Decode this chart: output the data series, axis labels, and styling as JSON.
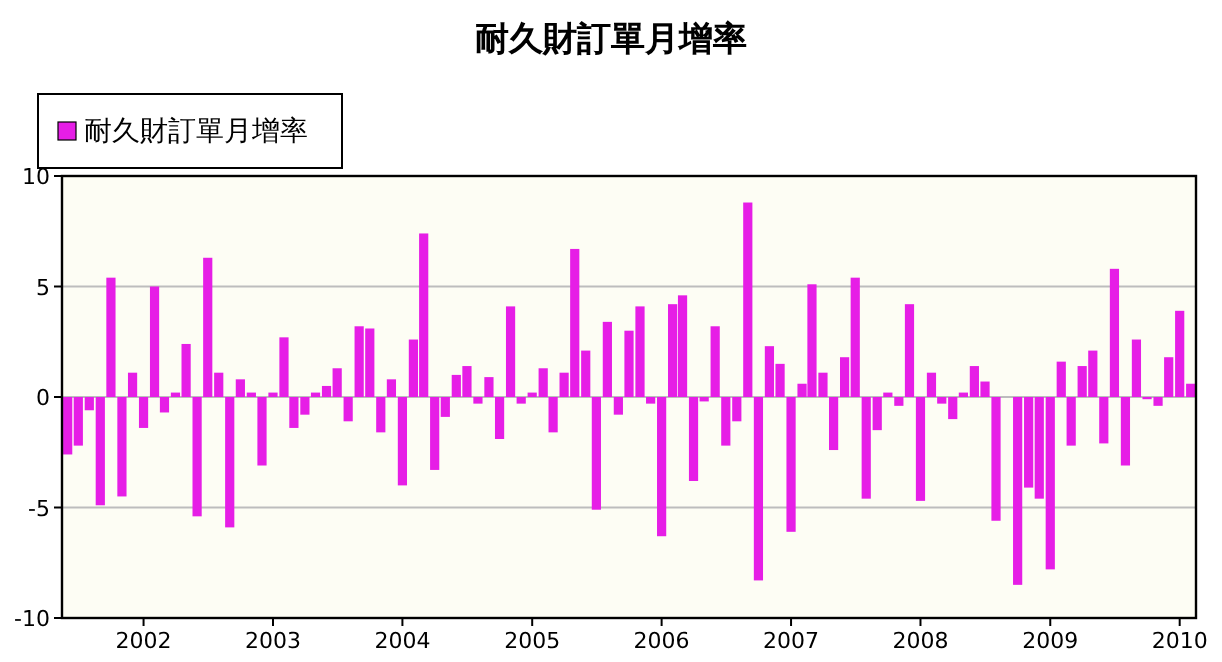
{
  "chart_data": {
    "type": "bar",
    "title": "耐久財訂單月增率",
    "x": [
      "2001-06",
      "2001-07",
      "2001-08",
      "2001-09",
      "2001-10",
      "2001-11",
      "2001-12",
      "2002-01",
      "2002-02",
      "2002-03",
      "2002-04",
      "2002-05",
      "2002-06",
      "2002-07",
      "2002-08",
      "2002-09",
      "2002-10",
      "2002-11",
      "2002-12",
      "2003-01",
      "2003-02",
      "2003-03",
      "2003-04",
      "2003-05",
      "2003-06",
      "2003-07",
      "2003-08",
      "2003-09",
      "2003-10",
      "2003-11",
      "2003-12",
      "2004-01",
      "2004-02",
      "2004-03",
      "2004-04",
      "2004-05",
      "2004-06",
      "2004-07",
      "2004-08",
      "2004-09",
      "2004-10",
      "2004-11",
      "2004-12",
      "2005-01",
      "2005-02",
      "2005-03",
      "2005-04",
      "2005-05",
      "2005-06",
      "2005-07",
      "2005-08",
      "2005-09",
      "2005-10",
      "2005-11",
      "2005-12",
      "2006-01",
      "2006-02",
      "2006-03",
      "2006-04",
      "2006-05",
      "2006-06",
      "2006-07",
      "2006-08",
      "2006-09",
      "2006-10",
      "2006-11",
      "2006-12",
      "2007-01",
      "2007-02",
      "2007-03",
      "2007-04",
      "2007-05",
      "2007-06",
      "2007-07",
      "2007-08",
      "2007-09",
      "2007-10",
      "2007-11",
      "2007-12",
      "2008-01",
      "2008-02",
      "2008-03",
      "2008-04",
      "2008-05",
      "2008-06",
      "2008-07",
      "2008-08",
      "2008-09",
      "2008-10",
      "2008-11",
      "2008-12",
      "2009-01",
      "2009-02",
      "2009-03",
      "2009-04",
      "2009-05",
      "2009-06",
      "2009-07",
      "2009-08",
      "2009-09",
      "2009-10",
      "2009-11",
      "2009-12",
      "2010-01",
      "2010-02"
    ],
    "series": [
      {
        "name": "耐久財訂單月增率",
        "color": "#e61ee6",
        "values": [
          -2.6,
          -2.2,
          -0.6,
          -4.9,
          5.4,
          -4.5,
          1.1,
          -1.4,
          5.0,
          -0.7,
          0.2,
          2.4,
          -5.4,
          6.3,
          1.1,
          -5.9,
          0.8,
          0.2,
          -3.1,
          0.2,
          2.7,
          -1.4,
          -0.8,
          0.2,
          0.5,
          1.3,
          -1.1,
          3.2,
          3.1,
          -1.6,
          0.8,
          -4.0,
          2.6,
          7.4,
          -3.3,
          -0.9,
          1.0,
          1.4,
          -0.3,
          0.9,
          -1.9,
          4.1,
          -0.3,
          0.2,
          1.3,
          -1.6,
          1.1,
          6.7,
          2.1,
          -5.1,
          3.4,
          -0.8,
          3.0,
          4.1,
          -0.3,
          -6.3,
          4.2,
          4.6,
          -3.8,
          -0.2,
          3.2,
          -2.2,
          -1.1,
          8.8,
          -8.3,
          2.3,
          1.5,
          -6.1,
          0.6,
          5.1,
          1.1,
          -2.4,
          1.8,
          5.4,
          -4.6,
          -1.5,
          0.2,
          -0.4,
          4.2,
          -4.7,
          1.1,
          -0.3,
          -1.0,
          0.2,
          1.4,
          0.7,
          -5.6,
          0,
          -8.5,
          -4.1,
          -4.6,
          -7.8,
          1.6,
          -2.2,
          1.4,
          2.1,
          -2.1,
          5.8,
          -3.1,
          2.6,
          -0.1,
          -0.4,
          1.8,
          3.9,
          0.6
        ]
      }
    ],
    "xlim": [
      "2001-05-16",
      "2010-02-16"
    ],
    "xticks": [
      "2002",
      "2003",
      "2004",
      "2005",
      "2006",
      "2007",
      "2008",
      "2009",
      "2010"
    ],
    "ylim": [
      -10,
      10
    ],
    "yticks": [
      -10,
      -5,
      0,
      5,
      10
    ],
    "grid": "y",
    "legend": "top left"
  }
}
